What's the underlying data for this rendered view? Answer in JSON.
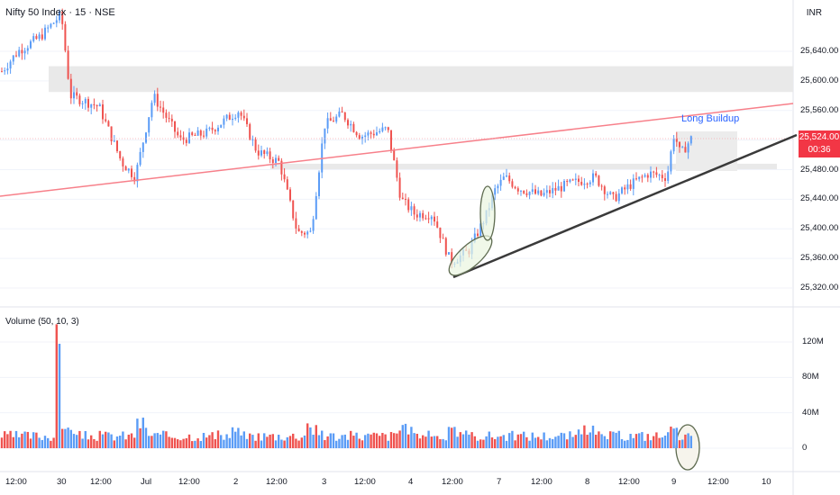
{
  "header": {
    "symbol": "Nifty 50 Index · 15 · NSE",
    "currency": "INR"
  },
  "annotation": {
    "label": "Long Buildup"
  },
  "last_price": {
    "value": "25,524.00",
    "timer": "00:36"
  },
  "volume_header": {
    "label": "Volume (50, 10, 3)"
  },
  "price_axis": {
    "ticks": [
      "25,640.00",
      "25,600.00",
      "25,560.00",
      "25,480.00",
      "25,440.00",
      "25,400.00",
      "25,360.00",
      "25,320.00"
    ]
  },
  "volume_axis": {
    "ticks": [
      "120M",
      "80M",
      "40M",
      "0"
    ]
  },
  "time_axis": {
    "labels": [
      "12:00",
      "30",
      "12:00",
      "Jul",
      "12:00",
      "2",
      "12:00",
      "3",
      "12:00",
      "4",
      "12:00",
      "7",
      "12:00",
      "8",
      "12:00",
      "9",
      "12:00",
      "10"
    ]
  },
  "colors": {
    "up": "#5b9cf6",
    "down": "#ef5350",
    "pink_trend": "#f7808a",
    "black_trend": "#3a3a3a",
    "zone": "#e9e9e9",
    "ellipse_fill": "#eaf5e0",
    "ellipse_stroke": "#5e6b50"
  },
  "chart_data": {
    "type": "candlestick",
    "title": "Nifty 50 Index · 15 · NSE",
    "y_axis_unit": "INR",
    "y_range": [
      25300,
      25700
    ],
    "x_session_labels": [
      "30",
      "Jul",
      "2",
      "3",
      "4",
      "7",
      "8",
      "9",
      "10"
    ],
    "key_levels": {
      "supply_zone": [
        25585,
        25615
      ],
      "demand_zone": [
        25481,
        25488
      ],
      "last_price": 25524.0
    },
    "trendlines": [
      {
        "name": "pink",
        "from": [
          "start",
          25448
        ],
        "to": [
          "end",
          25570
        ]
      },
      {
        "name": "black",
        "from": [
          "4 12:00",
          25338
        ],
        "to": [
          "end",
          25525
        ]
      }
    ],
    "volume": {
      "y_range_millions": [
        0,
        140
      ],
      "highlighted_spike_millions": 140,
      "second_spike_millions": 118
    }
  }
}
